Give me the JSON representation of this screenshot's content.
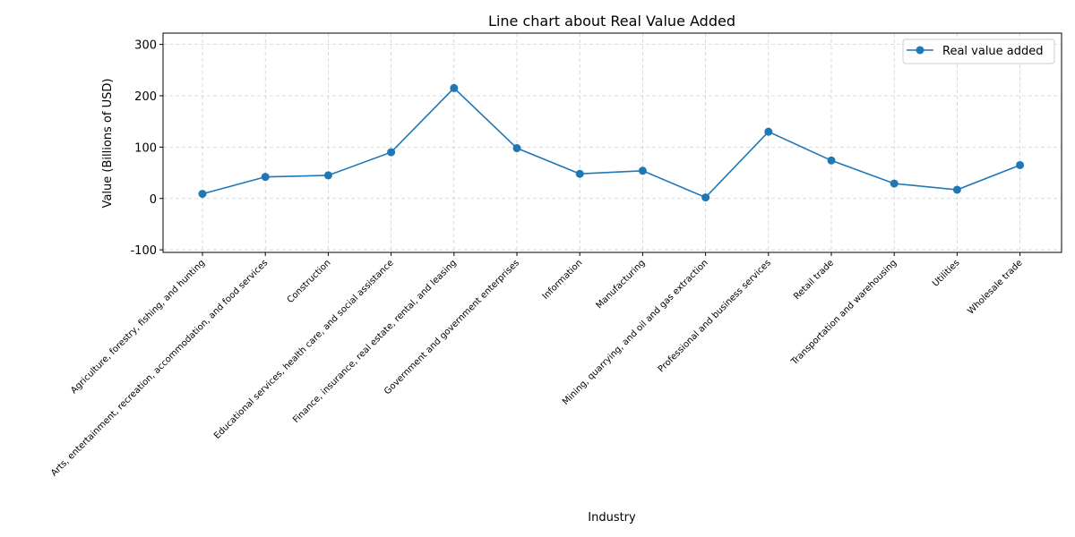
{
  "chart_data": {
    "type": "line",
    "title": "Line chart about Real Value Added",
    "xlabel": "Industry",
    "ylabel": "Value (Billions of USD)",
    "ylim": [
      -105,
      322
    ],
    "yticks": [
      -100,
      0,
      100,
      200,
      300
    ],
    "grid": true,
    "legend_position": "top-right",
    "categories": [
      "Agriculture, forestry, fishing, and hunting",
      "Arts, entertainment, recreation, accommodation, and food services",
      "Construction",
      "Educational services, health care, and social assistance",
      "Finance, insurance, real estate, rental, and leasing",
      "Government and government enterprises",
      "Information",
      "Manufacturing",
      "Mining, quarrying, and oil and gas extraction",
      "Professional and business services",
      "Retail trade",
      "Transportation and warehousing",
      "Utilities",
      "Wholesale trade"
    ],
    "series": [
      {
        "name": "Real value added",
        "color": "#1f77b4",
        "values": [
          9,
          42,
          45,
          90,
          215,
          98,
          48,
          54,
          2,
          130,
          74,
          29,
          17,
          65
        ]
      }
    ]
  }
}
